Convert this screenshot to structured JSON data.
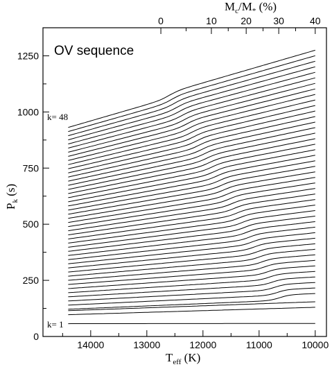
{
  "chart_data": {
    "type": "line",
    "annotation": "OV sequence",
    "xlabel": {
      "main": "T",
      "sub": "eff",
      "unit": " (K)"
    },
    "ylabel": {
      "main": "P",
      "sub": "k",
      "unit": " (s)"
    },
    "top_axis_label": {
      "main": "M",
      "sub": "c",
      "mid": "/M",
      "sub2": "*",
      "unit": " (%)"
    },
    "x_reversed": true,
    "xlim": [
      14850,
      9800
    ],
    "ylim": [
      0,
      1375
    ],
    "x_ticks": [
      14000,
      13000,
      12000,
      11000,
      10000
    ],
    "x_tick_labels": [
      "14000",
      "13000",
      "12000",
      "11000",
      "10000"
    ],
    "y_ticks": [
      0,
      250,
      500,
      750,
      1000,
      1250
    ],
    "y_tick_labels": [
      "0",
      "250",
      "500",
      "750",
      "1000",
      "1250"
    ],
    "top_ticks": [
      {
        "teff": 12750,
        "label": "0"
      },
      {
        "teff": 11850,
        "label": "10"
      },
      {
        "teff": 11230,
        "label": "20"
      },
      {
        "teff": 10650,
        "label": "30"
      },
      {
        "teff": 10000,
        "label": "40"
      }
    ],
    "top_minor_teff": [
      12300,
      11550,
      10930,
      10350
    ],
    "k_first_label": "k= 1",
    "k_last_label": "k= 48",
    "n_modes": 48,
    "teff_range": [
      14400,
      10000
    ],
    "period_start": {
      "k1": 57,
      "k2": 97,
      "k3": 115,
      "step": 18.4
    },
    "period_end": {
      "k1": 58,
      "k2": 130,
      "k48": 1263
    },
    "mode_trapping_feature": {
      "teff_center_at_low_k": 10500,
      "teff_center_at_high_k": 12600,
      "amplitude_s": 12
    }
  }
}
